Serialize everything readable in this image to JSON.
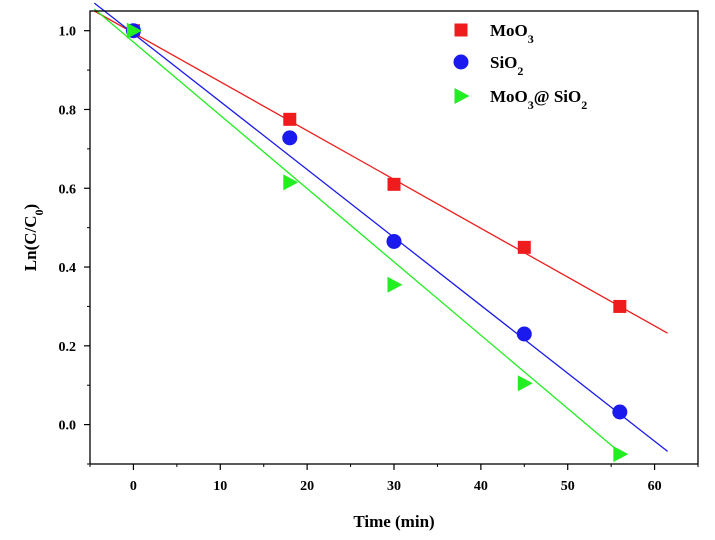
{
  "chart_data": {
    "type": "scatter",
    "title": "",
    "xlabel": "Time (min)",
    "ylabel": "Ln(C/C0)",
    "ylabel_parts": {
      "main": "Ln(C/C",
      "sub": "0",
      "tail": ")"
    },
    "xlim": [
      -5,
      65
    ],
    "ylim": [
      -0.1,
      1.05
    ],
    "xticks": [
      0,
      10,
      20,
      30,
      40,
      50,
      60
    ],
    "yticks": [
      0.0,
      0.2,
      0.4,
      0.6,
      0.8,
      1.0
    ],
    "xtick_labels": [
      "0",
      "10",
      "20",
      "30",
      "40",
      "50",
      "60"
    ],
    "ytick_labels": [
      "0.0",
      "0.2",
      "0.4",
      "0.6",
      "0.8",
      "1.0"
    ],
    "grid": false,
    "legend_position": "top-right",
    "series": [
      {
        "name": "MoO3",
        "name_parts": [
          {
            "t": "MoO"
          },
          {
            "t": "3",
            "sub": true
          }
        ],
        "marker": "square",
        "color": "#ee1c1c",
        "x": [
          0,
          18,
          30,
          45,
          56
        ],
        "y": [
          1.0,
          0.775,
          0.61,
          0.45,
          0.3
        ],
        "fit": {
          "x": [
            -4.5,
            61.5
          ],
          "y": [
            1.05,
            0.232
          ]
        }
      },
      {
        "name": "SiO2",
        "name_parts": [
          {
            "t": "SiO"
          },
          {
            "t": "2",
            "sub": true
          }
        ],
        "marker": "circle",
        "color": "#1a1aee",
        "x": [
          0,
          18,
          30,
          45,
          56
        ],
        "y": [
          1.0,
          0.728,
          0.465,
          0.23,
          0.032
        ],
        "fit": {
          "x": [
            -4.5,
            61.5
          ],
          "y": [
            1.07,
            -0.068
          ]
        }
      },
      {
        "name": "MoO3@ SiO2",
        "name_parts": [
          {
            "t": "MoO"
          },
          {
            "t": "3",
            "sub": true
          },
          {
            "t": "@ SiO"
          },
          {
            "t": "2",
            "sub": true
          }
        ],
        "marker": "triangle-right",
        "color": "#22ee22",
        "x": [
          0,
          18,
          30,
          45,
          56
        ],
        "y": [
          1.0,
          0.615,
          0.355,
          0.105,
          -0.075
        ],
        "fit": {
          "x": [
            -4.5,
            56.5
          ],
          "y": [
            1.055,
            -0.08
          ]
        }
      }
    ]
  }
}
